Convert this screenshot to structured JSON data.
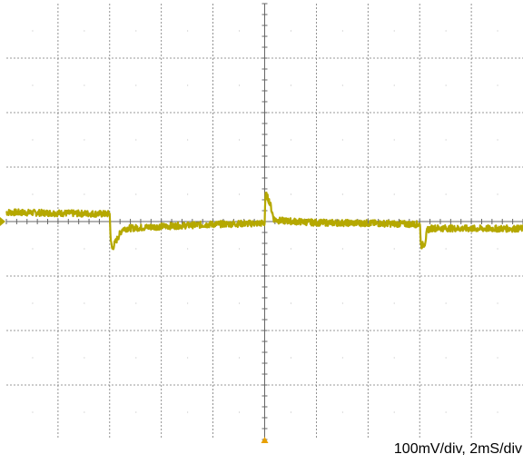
{
  "caption": "100mV/div, 2mS/div",
  "chart_data": {
    "type": "line",
    "grid": true,
    "divisions": {
      "x": 10,
      "y": 8
    },
    "x_units_per_div": 2,
    "y_units_per_div": 100,
    "xlim": [
      0,
      20
    ],
    "ylim": [
      -400,
      400
    ],
    "trace_color": "#b5a800",
    "grid_color": "#777777",
    "series": [
      {
        "values_x": [
          0,
          3.9,
          4.0,
          4.02,
          4.05,
          4.1,
          4.2,
          4.5,
          6,
          8,
          10.0,
          10.02,
          10.05,
          10.2,
          10.3,
          10.35,
          10.5,
          12,
          14,
          16.0,
          16.02,
          16.05,
          16.2,
          16.3,
          16.5,
          18,
          20
        ],
        "values_y": [
          17,
          14,
          14,
          -10,
          -40,
          -50,
          -40,
          -13,
          -9,
          -5,
          -3,
          40,
          50,
          35,
          15,
          5,
          2,
          -2,
          -3,
          -5,
          -10,
          -45,
          -40,
          -15,
          -12,
          -13,
          -13
        ]
      }
    ]
  }
}
